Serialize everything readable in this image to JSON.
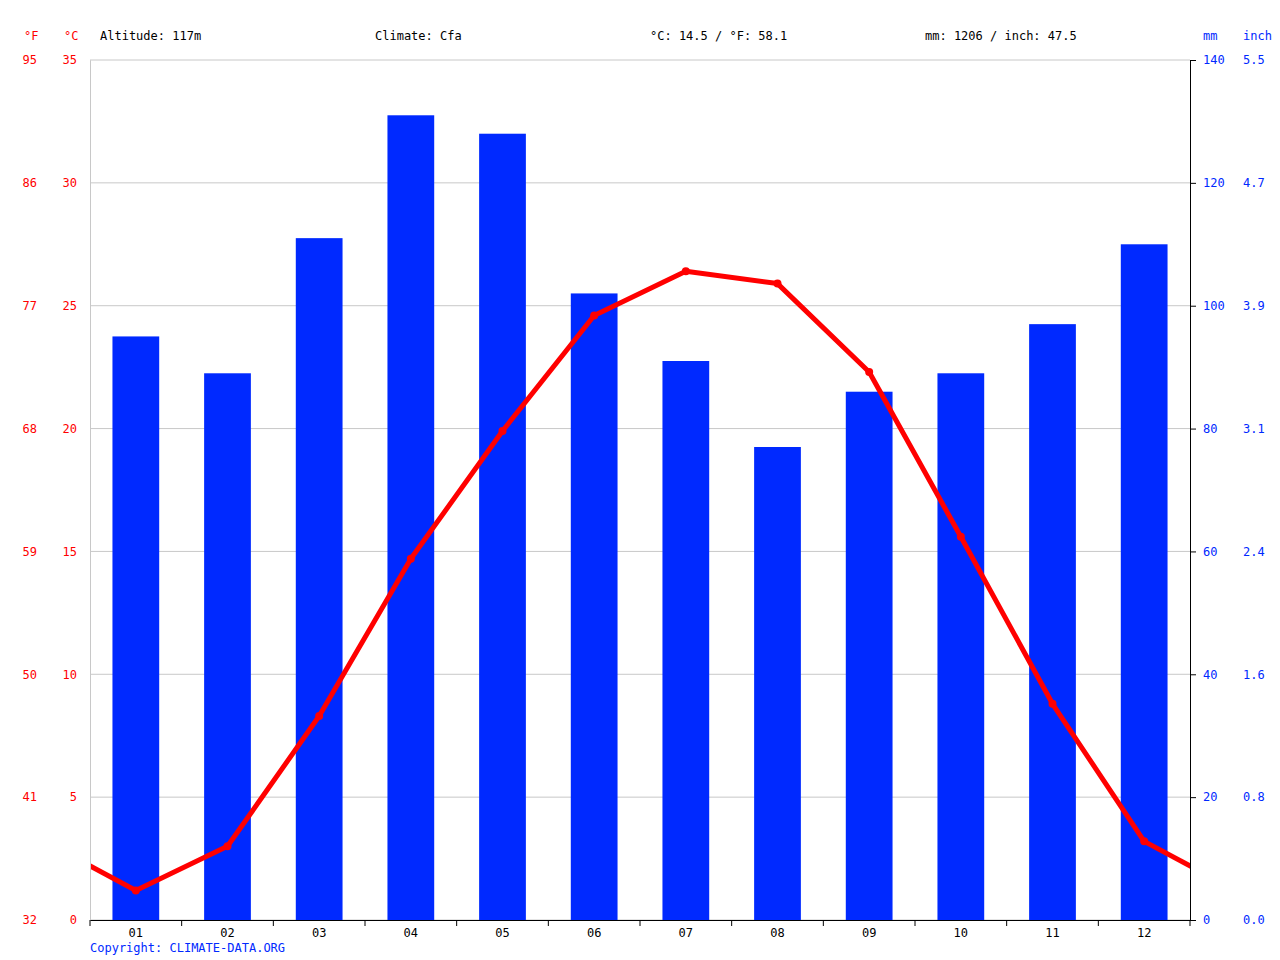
{
  "chart_data": {
    "type": "bar",
    "annotations": [
      "Altitude: 117m",
      "Climate: Cfa",
      "°C: 14.5 / °F: 58.1",
      "mm: 1206 / inch: 47.5"
    ],
    "source": "Copyright: CLIMATE-DATA.ORG",
    "categories": [
      "01",
      "02",
      "03",
      "04",
      "05",
      "06",
      "07",
      "08",
      "09",
      "10",
      "11",
      "12"
    ],
    "series": [
      {
        "type": "bar",
        "axis": "y2",
        "color": "#0029ff",
        "values": [
          95,
          89,
          111,
          131,
          128,
          102,
          91,
          77,
          86,
          89,
          97,
          110
        ]
      },
      {
        "type": "line",
        "color": "#ff0000",
        "marker": "circle",
        "line_style": "solid",
        "values": [
          1.2,
          3.0,
          8.3,
          14.7,
          19.9,
          24.6,
          26.4,
          25.9,
          22.3,
          15.6,
          8.8,
          3.2
        ]
      }
    ],
    "ylabel": "°C",
    "ylim": [
      0,
      35
    ],
    "yticks": [
      0,
      5,
      10,
      15,
      20,
      25,
      30,
      35
    ],
    "y2label": "mm",
    "y2lim": [
      0,
      140
    ],
    "y2ticks": [
      0,
      20,
      40,
      60,
      80,
      100,
      120,
      140
    ],
    "y3label": "°F",
    "y3lim": [
      32,
      95
    ],
    "y3ticks": [
      32,
      41,
      50,
      59,
      68,
      77,
      86,
      95
    ],
    "y4label": "inch",
    "y4lim": [
      0,
      5.5118
    ],
    "y4ticks": [
      {
        "value": 0,
        "label": "0.0"
      },
      {
        "value": 0.7874,
        "label": "0.8"
      },
      {
        "value": 1.5748,
        "label": "1.6"
      },
      {
        "value": 2.3622,
        "label": "2.4"
      },
      {
        "value": 3.1496,
        "label": "3.1"
      },
      {
        "value": 3.937,
        "label": "3.9"
      },
      {
        "value": 4.7244,
        "label": "4.7"
      },
      {
        "value": 5.5118,
        "label": "5.5"
      }
    ],
    "grid": true
  }
}
